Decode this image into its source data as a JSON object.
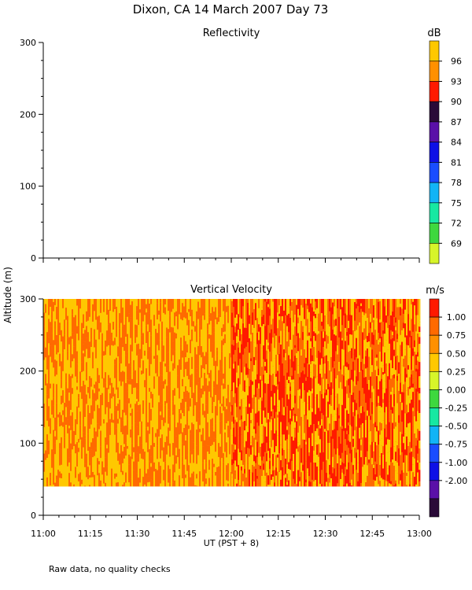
{
  "figure": {
    "title": "Dixon, CA 14 March 2007  Day  73",
    "ylabel": "Altitude (m)",
    "xlabel": "UT  (PST + 8)",
    "footnote": "Raw data, no quality checks"
  },
  "x_ticks": [
    "11:00",
    "11:15",
    "11:30",
    "11:45",
    "12:00",
    "12:15",
    "12:30",
    "12:45",
    "13:00"
  ],
  "colors": {
    "reflectivity_scale": [
      "#d7f52a",
      "#3ed83e",
      "#17e8a2",
      "#12b4f6",
      "#1a4dff",
      "#0e10e6",
      "#5a10a8",
      "#2a0a38",
      "#ff1a00",
      "#ff9000",
      "#ffc800"
    ],
    "velocity_scale": [
      "#2a0a38",
      "#5a10a8",
      "#0e10e6",
      "#1a4dff",
      "#12b4f6",
      "#17e8a2",
      "#3ed83e",
      "#d7f52a",
      "#ffc800",
      "#ff9000",
      "#ff6a00",
      "#ff1a00"
    ]
  },
  "chart_data": [
    {
      "type": "heatmap",
      "title": "Reflectivity",
      "colorbar_unit": "dB",
      "colorbar_labels": [
        "96",
        "93",
        "90",
        "87",
        "84",
        "81",
        "78",
        "75",
        "72",
        "69"
      ],
      "x_range": [
        "11:00",
        "13:00"
      ],
      "ylim": [
        0,
        300
      ],
      "y_ticks": [
        0,
        100,
        200,
        300
      ],
      "values": []
    },
    {
      "type": "heatmap",
      "title": "Vertical Velocity",
      "colorbar_unit": "m/s",
      "colorbar_labels": [
        "1.00",
        "0.75",
        "0.50",
        "0.25",
        "0.00",
        "-0.25",
        "-0.50",
        "-0.75",
        "-1.00",
        "-2.00"
      ],
      "x_range": [
        "11:00",
        "13:00"
      ],
      "ylim": [
        0,
        300
      ],
      "y_ticks": [
        0,
        100,
        200,
        300
      ],
      "data_altitude_range": [
        40,
        300
      ],
      "bands": [
        {
          "x_range": [
            "11:00",
            "12:00"
          ],
          "dominant_values": [
            0.5,
            0.75
          ]
        },
        {
          "x_range": [
            "12:00",
            "13:00"
          ],
          "dominant_values": [
            1.0,
            0.75,
            0.5
          ]
        }
      ]
    }
  ]
}
